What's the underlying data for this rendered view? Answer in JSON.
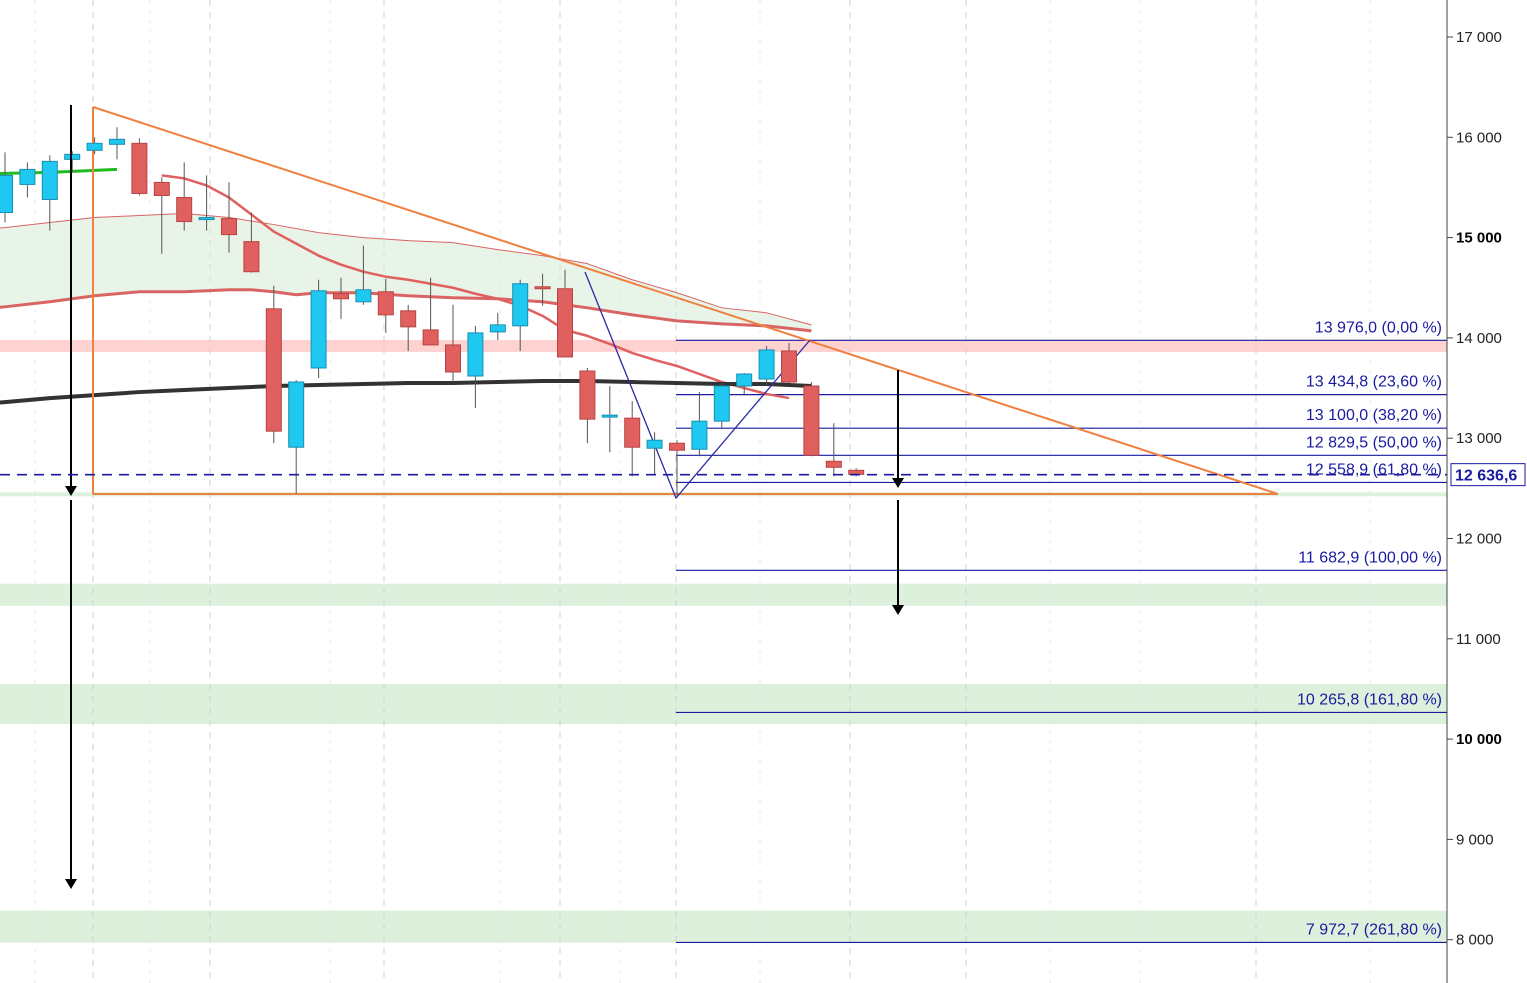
{
  "chart_data": {
    "type": "candlestick",
    "ylim": [
      7550,
      17350
    ],
    "y_ticks": [
      {
        "value": 17000,
        "label": "17 000",
        "major": false
      },
      {
        "value": 16000,
        "label": "16 000",
        "major": false
      },
      {
        "value": 15000,
        "label": "15 000",
        "major": true
      },
      {
        "value": 14000,
        "label": "14 000",
        "major": false
      },
      {
        "value": 13000,
        "label": "13 000",
        "major": false
      },
      {
        "value": 12000,
        "label": "12 000",
        "major": false
      },
      {
        "value": 11000,
        "label": "11 000",
        "major": false
      },
      {
        "value": 10000,
        "label": "10 000",
        "major": true
      },
      {
        "value": 9000,
        "label": "9 000",
        "major": false
      },
      {
        "value": 8000,
        "label": "8 000",
        "major": false
      }
    ],
    "current_price": {
      "value": 12636.6,
      "label": "12 636,6",
      "color": "#1a1aa0"
    },
    "candles": [
      {
        "i": 0,
        "o": 15250,
        "h": 15850,
        "l": 15150,
        "c": 15620
      },
      {
        "i": 1,
        "o": 15530,
        "h": 15750,
        "l": 15400,
        "c": 15680
      },
      {
        "i": 2,
        "o": 15380,
        "h": 15820,
        "l": 15070,
        "c": 15760
      },
      {
        "i": 3,
        "o": 15780,
        "h": 15860,
        "l": 15650,
        "c": 15830
      },
      {
        "i": 4,
        "o": 15870,
        "h": 16000,
        "l": 15830,
        "c": 15940
      },
      {
        "i": 5,
        "o": 15930,
        "h": 16100,
        "l": 15780,
        "c": 15980
      },
      {
        "i": 6,
        "o": 15940,
        "h": 15990,
        "l": 15420,
        "c": 15440
      },
      {
        "i": 7,
        "o": 15550,
        "h": 15600,
        "l": 14840,
        "c": 15420
      },
      {
        "i": 8,
        "o": 15400,
        "h": 15750,
        "l": 15070,
        "c": 15160
      },
      {
        "i": 9,
        "o": 15180,
        "h": 15620,
        "l": 15070,
        "c": 15200
      },
      {
        "i": 10,
        "o": 15190,
        "h": 15550,
        "l": 14850,
        "c": 15030
      },
      {
        "i": 11,
        "o": 14960,
        "h": 15250,
        "l": 14650,
        "c": 14660
      },
      {
        "i": 12,
        "o": 14290,
        "h": 14520,
        "l": 12950,
        "c": 13070
      },
      {
        "i": 13,
        "o": 12910,
        "h": 13580,
        "l": 12450,
        "c": 13560
      },
      {
        "i": 14,
        "o": 13700,
        "h": 14580,
        "l": 13600,
        "c": 14470
      },
      {
        "i": 15,
        "o": 14440,
        "h": 14600,
        "l": 14190,
        "c": 14390
      },
      {
        "i": 16,
        "o": 14360,
        "h": 14920,
        "l": 14330,
        "c": 14480
      },
      {
        "i": 17,
        "o": 14460,
        "h": 14590,
        "l": 14050,
        "c": 14230
      },
      {
        "i": 18,
        "o": 14270,
        "h": 14330,
        "l": 13870,
        "c": 14110
      },
      {
        "i": 19,
        "o": 14080,
        "h": 14600,
        "l": 13930,
        "c": 13930
      },
      {
        "i": 20,
        "o": 13930,
        "h": 14330,
        "l": 13560,
        "c": 13660
      },
      {
        "i": 21,
        "o": 13620,
        "h": 14120,
        "l": 13300,
        "c": 14050
      },
      {
        "i": 22,
        "o": 14060,
        "h": 14250,
        "l": 13980,
        "c": 14130
      },
      {
        "i": 23,
        "o": 14120,
        "h": 14580,
        "l": 13870,
        "c": 14540
      },
      {
        "i": 24,
        "o": 14510,
        "h": 14640,
        "l": 14320,
        "c": 14490
      },
      {
        "i": 25,
        "o": 14490,
        "h": 14680,
        "l": 13810,
        "c": 13810
      },
      {
        "i": 26,
        "o": 13670,
        "h": 13700,
        "l": 12950,
        "c": 13190
      },
      {
        "i": 27,
        "o": 13220,
        "h": 13520,
        "l": 12860,
        "c": 13230
      },
      {
        "i": 28,
        "o": 13200,
        "h": 13370,
        "l": 12620,
        "c": 12910
      },
      {
        "i": 29,
        "o": 12900,
        "h": 13060,
        "l": 12630,
        "c": 12980
      },
      {
        "i": 30,
        "o": 12950,
        "h": 12980,
        "l": 12430,
        "c": 12880
      },
      {
        "i": 31,
        "o": 12890,
        "h": 13460,
        "l": 12820,
        "c": 13170
      },
      {
        "i": 32,
        "o": 13170,
        "h": 13550,
        "l": 13090,
        "c": 13520
      },
      {
        "i": 33,
        "o": 13520,
        "h": 13650,
        "l": 13440,
        "c": 13640
      },
      {
        "i": 34,
        "o": 13590,
        "h": 13920,
        "l": 13530,
        "c": 13880
      },
      {
        "i": 35,
        "o": 13870,
        "h": 13950,
        "l": 13550,
        "c": 13560
      },
      {
        "i": 36,
        "o": 13520,
        "h": 13560,
        "l": 12820,
        "c": 12830
      },
      {
        "i": 37,
        "o": 12770,
        "h": 13150,
        "l": 12620,
        "c": 12710
      },
      {
        "i": 38,
        "o": 12680,
        "h": 12700,
        "l": 12620,
        "c": 12640
      }
    ],
    "series": [
      {
        "color": "#e06060",
        "width": 2.5,
        "points": [
          [
            7,
            15620
          ],
          [
            8,
            15590
          ],
          [
            9,
            15520
          ],
          [
            10,
            15400
          ],
          [
            11,
            15230
          ],
          [
            12,
            15060
          ],
          [
            13,
            14940
          ],
          [
            14,
            14820
          ],
          [
            15,
            14730
          ],
          [
            16,
            14660
          ],
          [
            17,
            14610
          ],
          [
            18,
            14580
          ],
          [
            19,
            14540
          ],
          [
            20,
            14500
          ],
          [
            21,
            14440
          ],
          [
            22,
            14390
          ],
          [
            23,
            14320
          ],
          [
            24,
            14220
          ],
          [
            25,
            14080
          ],
          [
            26,
            14020
          ],
          [
            27,
            13940
          ],
          [
            28,
            13850
          ],
          [
            29,
            13780
          ],
          [
            30,
            13720
          ],
          [
            31,
            13640
          ],
          [
            32,
            13560
          ],
          [
            33,
            13500
          ],
          [
            34,
            13440
          ],
          [
            35,
            13400
          ]
        ]
      },
      {
        "color": "#d96464",
        "width": 3,
        "points": [
          [
            -4,
            14230
          ],
          [
            0,
            14310
          ],
          [
            2,
            14360
          ],
          [
            4,
            14420
          ],
          [
            6,
            14460
          ],
          [
            8,
            14460
          ],
          [
            10,
            14480
          ],
          [
            11,
            14480
          ],
          [
            12,
            14460
          ],
          [
            13,
            14430
          ],
          [
            14,
            14450
          ],
          [
            16,
            14450
          ],
          [
            18,
            14420
          ],
          [
            20,
            14400
          ],
          [
            22,
            14390
          ],
          [
            24,
            14360
          ],
          [
            26,
            14300
          ],
          [
            28,
            14230
          ],
          [
            30,
            14170
          ],
          [
            32,
            14140
          ],
          [
            34,
            14120
          ],
          [
            36,
            14070
          ]
        ]
      },
      {
        "color": "#d96464",
        "width": 1,
        "points": [
          [
            -4,
            15050
          ],
          [
            0,
            15100
          ],
          [
            2,
            15150
          ],
          [
            4,
            15200
          ],
          [
            6,
            15220
          ],
          [
            8,
            15240
          ],
          [
            10,
            15200
          ],
          [
            12,
            15130
          ],
          [
            14,
            15050
          ],
          [
            16,
            15000
          ],
          [
            18,
            14970
          ],
          [
            20,
            14950
          ],
          [
            22,
            14880
          ],
          [
            24,
            14820
          ],
          [
            26,
            14740
          ],
          [
            28,
            14580
          ],
          [
            30,
            14450
          ],
          [
            32,
            14300
          ],
          [
            34,
            14250
          ],
          [
            36,
            14130
          ]
        ]
      },
      {
        "color": "#333333",
        "width": 4,
        "points": [
          [
            -4,
            13290
          ],
          [
            -2,
            13320
          ],
          [
            0,
            13360
          ],
          [
            2,
            13400
          ],
          [
            4,
            13430
          ],
          [
            6,
            13460
          ],
          [
            8,
            13480
          ],
          [
            10,
            13500
          ],
          [
            12,
            13520
          ],
          [
            14,
            13530
          ],
          [
            16,
            13540
          ],
          [
            18,
            13550
          ],
          [
            20,
            13550
          ],
          [
            22,
            13560
          ],
          [
            24,
            13570
          ],
          [
            26,
            13570
          ],
          [
            28,
            13560
          ],
          [
            30,
            13550
          ],
          [
            32,
            13540
          ],
          [
            34,
            13540
          ],
          [
            36,
            13520
          ]
        ]
      },
      {
        "color": "#22bb22",
        "width": 3,
        "points": [
          [
            -4,
            15620
          ],
          [
            0,
            15640
          ],
          [
            2,
            15650
          ],
          [
            4,
            15670
          ],
          [
            5,
            15680
          ]
        ]
      }
    ],
    "fibonacci": [
      {
        "value": 13976.0,
        "label": "13 976,0 (0,00 %)"
      },
      {
        "value": 13434.8,
        "label": "13 434,8 (23,60 %)"
      },
      {
        "value": 13100.0,
        "label": "13 100,0 (38,20 %)"
      },
      {
        "value": 12829.5,
        "label": "12 829,5 (50,00 %)"
      },
      {
        "value": 12558.9,
        "label": "12 558,9 (61,80 %)"
      },
      {
        "value": 11682.9,
        "label": "11 682,9 (100,00 %)"
      },
      {
        "value": 10265.8,
        "label": "10 265,8 (161,80 %)"
      },
      {
        "value": 7972.7,
        "label": "7 972,7 (261,80 %)"
      }
    ],
    "zones": [
      {
        "from": 13860,
        "to": 13980,
        "color": "#ffd2d2"
      },
      {
        "from": 12420,
        "to": 12460,
        "color": "#dcf0dc"
      },
      {
        "from": 11330,
        "to": 11550,
        "color": "#dcf0dc"
      },
      {
        "from": 10150,
        "to": 10550,
        "color": "#dcf0dc"
      },
      {
        "from": 7970,
        "to": 8290,
        "color": "#dcf0dc"
      }
    ],
    "colors": {
      "bull": "#1ec8f0",
      "bear": "#e06060",
      "wick": "#555555",
      "triangle": "#f08040",
      "fib_line": "#1a1aa0",
      "grid": "#d0d0d0",
      "arrow": "#000000"
    }
  }
}
